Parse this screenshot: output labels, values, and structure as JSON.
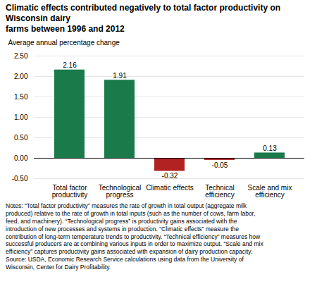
{
  "chart_data": {
    "type": "bar",
    "title": "Climatic effects contributed negatively to total factor productivity on Wisconsin dairy\nfarms between 1996 and 2012",
    "ylabel": "Average annual percentage change",
    "categories": [
      "Total factor\nproductivity",
      "Technological\nprogress",
      "Climatic effects",
      "Technical\nefficiency",
      "Scale and mix\nefficiency"
    ],
    "values": [
      2.16,
      1.91,
      -0.32,
      -0.05,
      0.13
    ],
    "colors": [
      "#1a7a4a",
      "#1a7a4a",
      "#b22222",
      "#b22222",
      "#1a7a4a"
    ],
    "ylim": [
      -0.5,
      2.5
    ],
    "yticks": [
      {
        "value": -0.5,
        "label": "-0.50"
      },
      {
        "value": 0,
        "label": "0.00"
      },
      {
        "value": 0.5,
        "label": "0.50"
      },
      {
        "value": 1,
        "label": "1.00"
      },
      {
        "value": 1.5,
        "label": "1.50"
      },
      {
        "value": 2,
        "label": "2.00"
      },
      {
        "value": 2.5,
        "label": "2.50"
      }
    ],
    "grid": true,
    "data_labels": true,
    "notes": "Notes: “Total factor productivity” measures the rate of growth in total output (aggregate milk\nproduced) relative to the rate of growth in total inputs (such as the number of cows, farm labor,\nfeed, and machinery). “Technological progress” is productivity gains associated with the\nintroduction of new processes and systems in production. “Climatic effects” measure the\ncontribution of long-term temperature trends to productivity. “Technical efficiency” measures how\nsuccessful producers are at combining various inputs in order to maximize output. “Scale and mix\nefficiency” captures productivity gains associated with expansion of dairy production capacity.\nSource: USDA, Economic Research Service calculations using data from the University of\nWisconsin, Center for Dairy Profitability."
  }
}
